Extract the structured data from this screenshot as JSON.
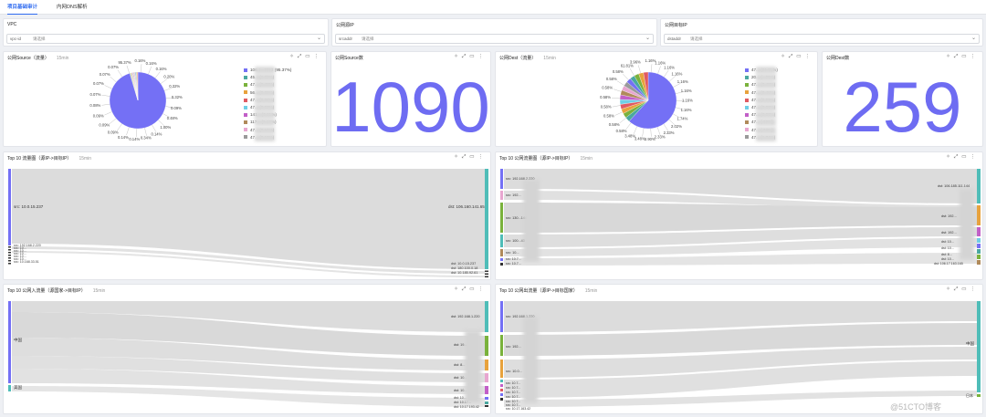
{
  "tabs": [
    {
      "label": "项目基础审计"
    },
    {
      "label": "内网DNS解析"
    }
  ],
  "filters": [
    {
      "title": "VPC",
      "key": "vpc-id",
      "placeholder": "请选择"
    },
    {
      "title": "公网源IP",
      "key": "srcaddr",
      "placeholder": "请选择"
    },
    {
      "title": "公网目标IP",
      "key": "dstaddr",
      "placeholder": "请选择"
    }
  ],
  "time_range": "15min",
  "panels": {
    "source_pie": {
      "title": "公网Source（流量）"
    },
    "source_count": {
      "title": "公网Source数",
      "value": "1090"
    },
    "dest_pie": {
      "title": "公网Dest（流量）"
    },
    "dest_count": {
      "title": "公网Dest数",
      "value": "259"
    },
    "top10_flow": {
      "title": "Top 10 流量图（源IP->目标IP）"
    },
    "top10_public_out": {
      "title": "Top 10 公网流量图（源IP->目标IP）"
    },
    "top10_public_in": {
      "title": "Top 10 公网入流量（源国家->目标IP）"
    },
    "top10_public_out_country": {
      "title": "Top 10 公网出流量（源IP->目标国家）"
    }
  },
  "source_pie": {
    "colors": [
      "#7470f5",
      "#4aa8a0",
      "#7ab23c",
      "#e8a23c",
      "#e05a62",
      "#6fcfe6",
      "#c25fc8",
      "#b08a5a",
      "#e8a6d0",
      "#9a9a9a"
    ],
    "labels": [
      "0.16%",
      "0.16%",
      "0.16%",
      "0.20%",
      "0.32%",
      "0.32%",
      "0.09%",
      "0.48%",
      "1.00%",
      "0.14%",
      "0.34%",
      "0.14%",
      "0.14%",
      "0.09%",
      "0.09%",
      "0.09%",
      "0.08%",
      "0.07%",
      "0.07%",
      "0.07%",
      "0.07%",
      "95.37%"
    ],
    "legend": [
      "106.1...0892 (95.37%)",
      "45... (1.00%)",
      "47... (0.48%)",
      "56... (0.39%)",
      "47... (0.32%)",
      "47... (0.22%)",
      "141... (0.21%)",
      "117... (0.18%)",
      "47... (0.16%)",
      "47... (0.16%)"
    ]
  },
  "dest_pie": {
    "colors": [
      "#7470f5",
      "#4aa8a0",
      "#7ab23c",
      "#e8a23c",
      "#e05a62",
      "#6fcfe6",
      "#c25fc8",
      "#b08a5a",
      "#e8a6d0",
      "#9a9a9a"
    ],
    "labels": [
      "1.16%",
      "1.16%",
      "1.16%",
      "1.16%",
      "1.16%",
      "1.16%",
      "1.16%",
      "1.16%",
      "1.74%",
      "2.02%",
      "2.33%",
      "2.33%",
      "2.90%",
      "3.48%",
      "3.48%",
      "0.58%",
      "0.58%",
      "0.58%",
      "0.58%",
      "0.58%",
      "0.58%",
      "0.58%",
      "0.58%",
      "61.81%",
      "3.96%"
    ],
    "legend": [
      "47... (61.81%)",
      "20... (...96%)",
      "47... (3.48%)",
      "47... (3.48%)",
      "47... (2.90%)",
      "47... (2.33%)",
      "47... (2.33%)",
      "47... (.32%)",
      "47... (.32%)",
      "47... (1.74%)"
    ]
  },
  "sankey_labels": {
    "top10_flow": {
      "src_main": "src: 10.0.15.237",
      "dst_main": "dst: 106.160.141.65",
      "src_small": [
        "src: 192.168.2.220",
        "src: 10...",
        "src: 10...",
        "src: 10...",
        "src: 10...",
        "src: 10...",
        "src: 10.168.33.51"
      ],
      "dst_small": [
        "dst: 10.0.15.237",
        "dst: 180.100.0.18",
        "dst: 10.185.92.61"
      ]
    },
    "top10_public_out": {
      "src": [
        "src: 192.168.2.220",
        "src: 192...",
        "src: 130...144",
        "src: 100...43",
        "src: 10...",
        "src: 10.7...",
        "src: 10.7..."
      ],
      "dst": [
        "dst: 106.185.111.144",
        "dst: 192...",
        "dst: 192...",
        "dst: 10...",
        "dst: 10...",
        "dst: 8...",
        "dst: 10...",
        "dst: 106.17.163.165"
      ]
    },
    "top10_public_in": {
      "src": [
        "中国",
        "美国"
      ],
      "dst": [
        "dst: 192.168.1.220",
        "dst: 19...",
        "dst: 8...",
        "dst: 10...",
        "dst: 10...",
        "dst: 10...",
        "dst: 10.17...",
        "dst: 10.17.193.42"
      ]
    },
    "top10_public_out_country": {
      "src": [
        "src: 192.168.1.220",
        "src: 192...",
        "src: 10.0...",
        "src: 10.7...",
        "src: 10.7...",
        "src: 10.7...",
        "src: 10.7...",
        "src: 10.7...",
        "src: 10.7...",
        "src: 10.17.163.42"
      ],
      "dst": [
        "中国",
        "日本"
      ]
    }
  },
  "watermark": "@51CTO博客"
}
